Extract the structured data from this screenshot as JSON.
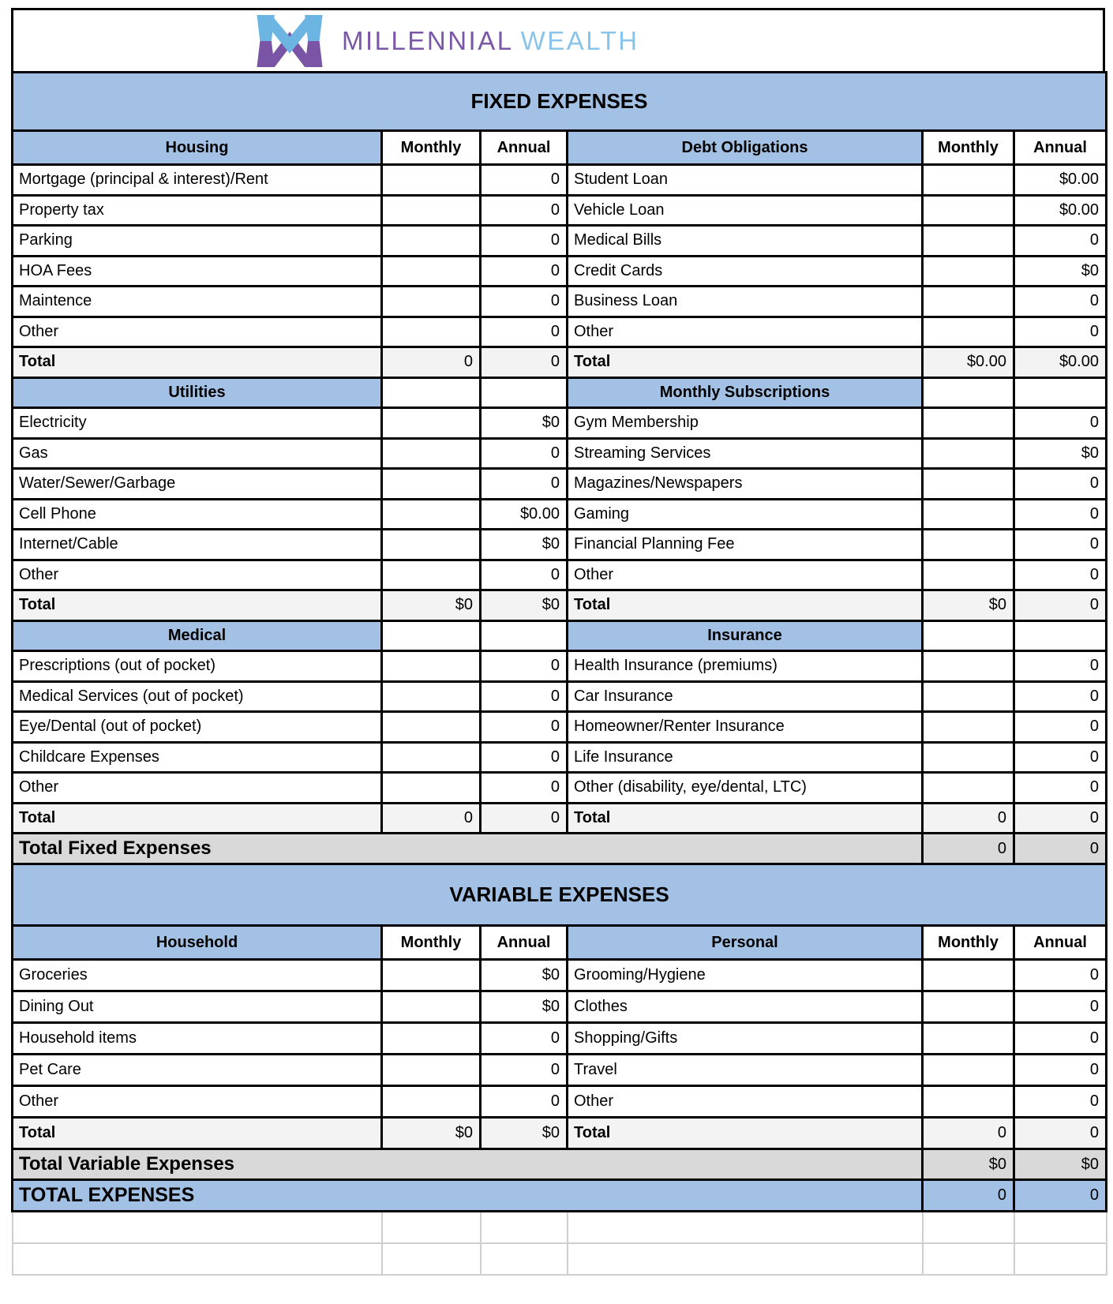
{
  "brand": {
    "name_part1": "MILLENNIAL",
    "name_part2": "WEALTH",
    "mark_blue": "#6CB5E2",
    "mark_purple": "#7A55A5"
  },
  "colors": {
    "band_blue": "#A2C1E4",
    "total_row_gray": "#F3F3F3",
    "summary_row_gray": "#D9D9D9",
    "grid_black": "#000000",
    "ghost_grid_gray": "#CFCFCF"
  },
  "sheet": {
    "fixed": {
      "title": "FIXED EXPENSES",
      "blocks": [
        {
          "column_headers": [
            "Monthly",
            "Annual"
          ],
          "left": {
            "name": "Housing",
            "rows": [
              {
                "label": "Mortgage (principal & interest)/Rent",
                "monthly": "",
                "annual": "0"
              },
              {
                "label": "Property tax",
                "monthly": "",
                "annual": "0"
              },
              {
                "label": "Parking",
                "monthly": "",
                "annual": "0"
              },
              {
                "label": "HOA Fees",
                "monthly": "",
                "annual": "0"
              },
              {
                "label": "Maintence",
                "monthly": "",
                "annual": "0"
              },
              {
                "label": "Other",
                "monthly": "",
                "annual": "0"
              }
            ],
            "total": {
              "label": "Total",
              "monthly": "0",
              "annual": "0"
            }
          },
          "right": {
            "name": "Debt Obligations",
            "rows": [
              {
                "label": "Student Loan",
                "monthly": "",
                "annual": "$0.00"
              },
              {
                "label": "Vehicle Loan",
                "monthly": "",
                "annual": "$0.00"
              },
              {
                "label": "Medical Bills",
                "monthly": "",
                "annual": "0"
              },
              {
                "label": "Credit Cards",
                "monthly": "",
                "annual": "$0"
              },
              {
                "label": "Business Loan",
                "monthly": "",
                "annual": "0"
              },
              {
                "label": "Other",
                "monthly": "",
                "annual": "0"
              }
            ],
            "total": {
              "label": "Total",
              "monthly": "$0.00",
              "annual": "$0.00"
            }
          }
        },
        {
          "left": {
            "name": "Utilities",
            "rows": [
              {
                "label": "Electricity",
                "monthly": "",
                "annual": "$0"
              },
              {
                "label": "Gas",
                "monthly": "",
                "annual": "0"
              },
              {
                "label": "Water/Sewer/Garbage",
                "monthly": "",
                "annual": "0"
              },
              {
                "label": "Cell Phone",
                "monthly": "",
                "annual": "$0.00"
              },
              {
                "label": "Internet/Cable",
                "monthly": "",
                "annual": "$0"
              },
              {
                "label": "Other",
                "monthly": "",
                "annual": "0"
              }
            ],
            "total": {
              "label": "Total",
              "monthly": "$0",
              "annual": "$0"
            }
          },
          "right": {
            "name": "Monthly Subscriptions",
            "rows": [
              {
                "label": "Gym Membership",
                "monthly": "",
                "annual": "0"
              },
              {
                "label": "Streaming Services",
                "monthly": "",
                "annual": "$0"
              },
              {
                "label": "Magazines/Newspapers",
                "monthly": "",
                "annual": "0"
              },
              {
                "label": "Gaming",
                "monthly": "",
                "annual": "0"
              },
              {
                "label": "Financial Planning Fee",
                "monthly": "",
                "annual": "0"
              },
              {
                "label": "Other",
                "monthly": "",
                "annual": "0"
              }
            ],
            "total": {
              "label": "Total",
              "monthly": "$0",
              "annual": "0"
            }
          }
        },
        {
          "left": {
            "name": "Medical",
            "rows": [
              {
                "label": "Prescriptions (out of pocket)",
                "monthly": "",
                "annual": "0"
              },
              {
                "label": "Medical Services (out of pocket)",
                "monthly": "",
                "annual": "0"
              },
              {
                "label": "Eye/Dental (out of pocket)",
                "monthly": "",
                "annual": "0"
              },
              {
                "label": "Childcare Expenses",
                "monthly": "",
                "annual": "0"
              },
              {
                "label": "Other",
                "monthly": "",
                "annual": "0"
              }
            ],
            "total": {
              "label": "Total",
              "monthly": "0",
              "annual": "0"
            }
          },
          "right": {
            "name": "Insurance",
            "rows": [
              {
                "label": "Health Insurance (premiums)",
                "monthly": "",
                "annual": "0"
              },
              {
                "label": "Car Insurance",
                "monthly": "",
                "annual": "0"
              },
              {
                "label": "Homeowner/Renter Insurance",
                "monthly": "",
                "annual": "0"
              },
              {
                "label": "Life Insurance",
                "monthly": "",
                "annual": "0"
              },
              {
                "label": "Other (disability, eye/dental, LTC)",
                "monthly": "",
                "annual": "0"
              }
            ],
            "total": {
              "label": "Total",
              "monthly": "0",
              "annual": "0"
            }
          }
        }
      ],
      "summary": {
        "label": "Total Fixed Expenses",
        "monthly": "0",
        "annual": "0"
      }
    },
    "variable": {
      "title": "VARIABLE EXPENSES",
      "blocks": [
        {
          "column_headers": [
            "Monthly",
            "Annual"
          ],
          "left": {
            "name": "Household",
            "rows": [
              {
                "label": "Groceries",
                "monthly": "",
                "annual": "$0"
              },
              {
                "label": "Dining Out",
                "monthly": "",
                "annual": "$0"
              },
              {
                "label": "Household items",
                "monthly": "",
                "annual": "0"
              },
              {
                "label": "Pet Care",
                "monthly": "",
                "annual": "0"
              },
              {
                "label": "Other",
                "monthly": "",
                "annual": "0"
              }
            ],
            "total": {
              "label": "Total",
              "monthly": "$0",
              "annual": "$0"
            }
          },
          "right": {
            "name": "Personal",
            "rows": [
              {
                "label": "Grooming/Hygiene",
                "monthly": "",
                "annual": "0"
              },
              {
                "label": "Clothes",
                "monthly": "",
                "annual": "0"
              },
              {
                "label": "Shopping/Gifts",
                "monthly": "",
                "annual": "0"
              },
              {
                "label": "Travel",
                "monthly": "",
                "annual": "0"
              },
              {
                "label": "Other",
                "monthly": "",
                "annual": "0"
              }
            ],
            "total": {
              "label": "Total",
              "monthly": "0",
              "annual": "0"
            }
          }
        }
      ],
      "summary": {
        "label": "Total Variable Expenses",
        "monthly": "$0",
        "annual": "$0"
      }
    },
    "grand_total": {
      "label": "TOTAL EXPENSES",
      "monthly": "0",
      "annual": "0"
    },
    "ghost_rows": 2
  }
}
